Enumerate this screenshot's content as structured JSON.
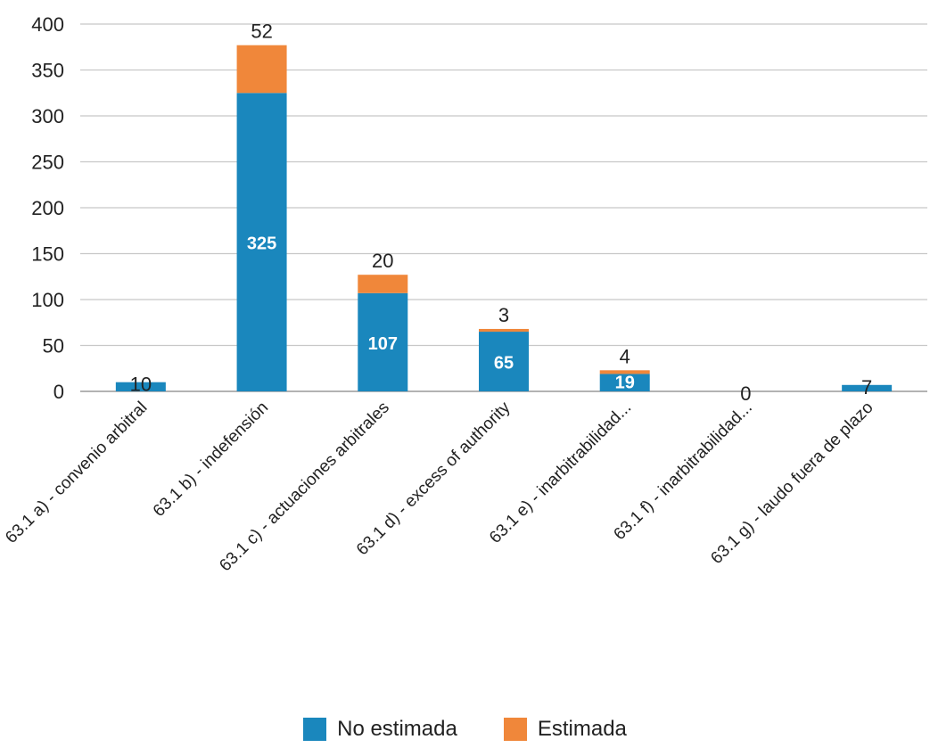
{
  "chart_data": {
    "type": "bar",
    "stacked": true,
    "title": "",
    "xlabel": "",
    "ylabel": "",
    "ylim": [
      0,
      400
    ],
    "yticks": [
      0,
      50,
      100,
      150,
      200,
      250,
      300,
      350,
      400
    ],
    "grid": true,
    "legend_position": "bottom",
    "categories": [
      "63.1 a) - convenio arbitral",
      "63.1 b) - indefensión",
      "63.1 c) - actuaciones arbitrales",
      "63.1 d) - excess of authority",
      "63.1 e) - inarbitrabilidad...",
      "63.1 f) - inarbitrabilidad...",
      "63.1 g) - laudo fuera de plazo"
    ],
    "series": [
      {
        "name": "No estimada",
        "color": "#1a87bd",
        "values": [
          10,
          325,
          107,
          65,
          19,
          0,
          7
        ]
      },
      {
        "name": "Estimada",
        "color": "#f0873a",
        "values": [
          0,
          52,
          20,
          3,
          4,
          0,
          0
        ]
      }
    ],
    "data_labels": [
      {
        "series": 0,
        "index": 0,
        "text": "10",
        "position": "over"
      },
      {
        "series": 0,
        "index": 1,
        "text": "325",
        "position": "inside"
      },
      {
        "series": 0,
        "index": 2,
        "text": "107",
        "position": "inside"
      },
      {
        "series": 0,
        "index": 3,
        "text": "65",
        "position": "inside"
      },
      {
        "series": 0,
        "index": 4,
        "text": "19",
        "position": "inside"
      },
      {
        "series": 0,
        "index": 5,
        "text": "0",
        "position": "over"
      },
      {
        "series": 0,
        "index": 6,
        "text": "7",
        "position": "over"
      },
      {
        "series": 1,
        "index": 1,
        "text": "52",
        "position": "above"
      },
      {
        "series": 1,
        "index": 2,
        "text": "20",
        "position": "above"
      },
      {
        "series": 1,
        "index": 3,
        "text": "3",
        "position": "above"
      },
      {
        "series": 1,
        "index": 4,
        "text": "4",
        "position": "above"
      }
    ]
  }
}
